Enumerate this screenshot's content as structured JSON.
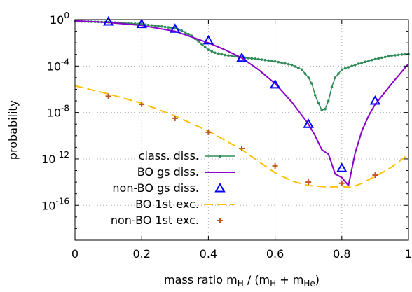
{
  "chart_data": {
    "type": "line",
    "xlabel": "mass ratio m_H / (m_H + m_He)",
    "ylabel": "probability",
    "xlim": [
      0,
      1
    ],
    "ylim_log10": [
      -19,
      0
    ],
    "y_scale": "log",
    "grid": true,
    "legend_position": "bottom-left",
    "x_ticks": [
      "0",
      "0.2",
      "0.4",
      "0.6",
      "0.8",
      "1"
    ],
    "x_tick_values": [
      0,
      0.2,
      0.4,
      0.6,
      0.8,
      1
    ],
    "y_ticks": [
      {
        "base": "10",
        "exp": "0",
        "log10": 0
      },
      {
        "base": "10",
        "exp": "-4",
        "log10": -4
      },
      {
        "base": "10",
        "exp": "-8",
        "log10": -8
      },
      {
        "base": "10",
        "exp": "-12",
        "log10": -12
      },
      {
        "base": "10",
        "exp": "-16",
        "log10": -16
      }
    ],
    "series": [
      {
        "name": "class. diss.",
        "style": "line-dots",
        "color": "#2e8b57",
        "points_log10": [
          [
            0,
            -0.15
          ],
          [
            0.05,
            -0.18
          ],
          [
            0.1,
            -0.22
          ],
          [
            0.15,
            -0.3
          ],
          [
            0.2,
            -0.4
          ],
          [
            0.25,
            -0.55
          ],
          [
            0.3,
            -0.75
          ],
          [
            0.32,
            -0.95
          ],
          [
            0.35,
            -1.4
          ],
          [
            0.38,
            -2.1
          ],
          [
            0.4,
            -2.6
          ],
          [
            0.42,
            -2.85
          ],
          [
            0.45,
            -3.05
          ],
          [
            0.5,
            -3.25
          ],
          [
            0.55,
            -3.4
          ],
          [
            0.6,
            -3.6
          ],
          [
            0.65,
            -3.9
          ],
          [
            0.68,
            -4.3
          ],
          [
            0.7,
            -5.0
          ],
          [
            0.71,
            -5.5
          ],
          [
            0.72,
            -6.5
          ],
          [
            0.73,
            -7.2
          ],
          [
            0.74,
            -7.8
          ],
          [
            0.75,
            -7.7
          ],
          [
            0.76,
            -7.0
          ],
          [
            0.77,
            -5.8
          ],
          [
            0.78,
            -5.0
          ],
          [
            0.8,
            -4.3
          ],
          [
            0.85,
            -3.8
          ],
          [
            0.9,
            -3.4
          ],
          [
            0.95,
            -3.1
          ],
          [
            1.0,
            -2.95
          ]
        ]
      },
      {
        "name": "BO gs diss.",
        "style": "line",
        "color": "#8b00c8",
        "points_log10": [
          [
            0,
            -0.1
          ],
          [
            0.1,
            -0.25
          ],
          [
            0.2,
            -0.5
          ],
          [
            0.3,
            -1.0
          ],
          [
            0.4,
            -2.0
          ],
          [
            0.45,
            -2.6
          ],
          [
            0.5,
            -3.3
          ],
          [
            0.55,
            -4.3
          ],
          [
            0.6,
            -5.5
          ],
          [
            0.65,
            -7.1
          ],
          [
            0.7,
            -9.0
          ],
          [
            0.72,
            -10.0
          ],
          [
            0.74,
            -11.2
          ],
          [
            0.76,
            -11.6
          ],
          [
            0.78,
            -13.3
          ],
          [
            0.8,
            -13.6
          ],
          [
            0.82,
            -14.3
          ],
          [
            0.84,
            -11.5
          ],
          [
            0.86,
            -9.6
          ],
          [
            0.88,
            -8.3
          ],
          [
            0.9,
            -7.3
          ],
          [
            0.95,
            -5.5
          ],
          [
            1.0,
            -3.8
          ]
        ]
      },
      {
        "name": "non-BO gs diss.",
        "style": "triangles",
        "color": "#0000ff",
        "points_log10": [
          [
            0.1,
            -0.18
          ],
          [
            0.2,
            -0.4
          ],
          [
            0.3,
            -0.8
          ],
          [
            0.4,
            -1.8
          ],
          [
            0.5,
            -3.3
          ],
          [
            0.6,
            -5.6
          ],
          [
            0.7,
            -9.0
          ],
          [
            0.8,
            -12.8
          ],
          [
            0.9,
            -7.0
          ]
        ]
      },
      {
        "name": "BO 1st exc.",
        "style": "dashed",
        "color": "#ffc000",
        "points_log10": [
          [
            0,
            -5.7
          ],
          [
            0.1,
            -6.4
          ],
          [
            0.2,
            -7.2
          ],
          [
            0.3,
            -8.3
          ],
          [
            0.4,
            -9.6
          ],
          [
            0.5,
            -11.2
          ],
          [
            0.55,
            -12.2
          ],
          [
            0.6,
            -13.2
          ],
          [
            0.65,
            -13.9
          ],
          [
            0.7,
            -14.3
          ],
          [
            0.75,
            -14.4
          ],
          [
            0.8,
            -14.4
          ],
          [
            0.83,
            -14.45
          ],
          [
            0.86,
            -14.1
          ],
          [
            0.9,
            -13.5
          ],
          [
            0.95,
            -12.7
          ],
          [
            1.0,
            -11.6
          ]
        ]
      },
      {
        "name": "non-BO 1st exc.",
        "style": "crosses",
        "color": "#c0561b",
        "points_log10": [
          [
            0.1,
            -6.6
          ],
          [
            0.2,
            -7.3
          ],
          [
            0.3,
            -8.5
          ],
          [
            0.4,
            -9.7
          ],
          [
            0.5,
            -11.1
          ],
          [
            0.6,
            -12.6
          ],
          [
            0.7,
            -14.0
          ],
          [
            0.8,
            -14.1
          ],
          [
            0.9,
            -13.4
          ]
        ]
      }
    ]
  }
}
